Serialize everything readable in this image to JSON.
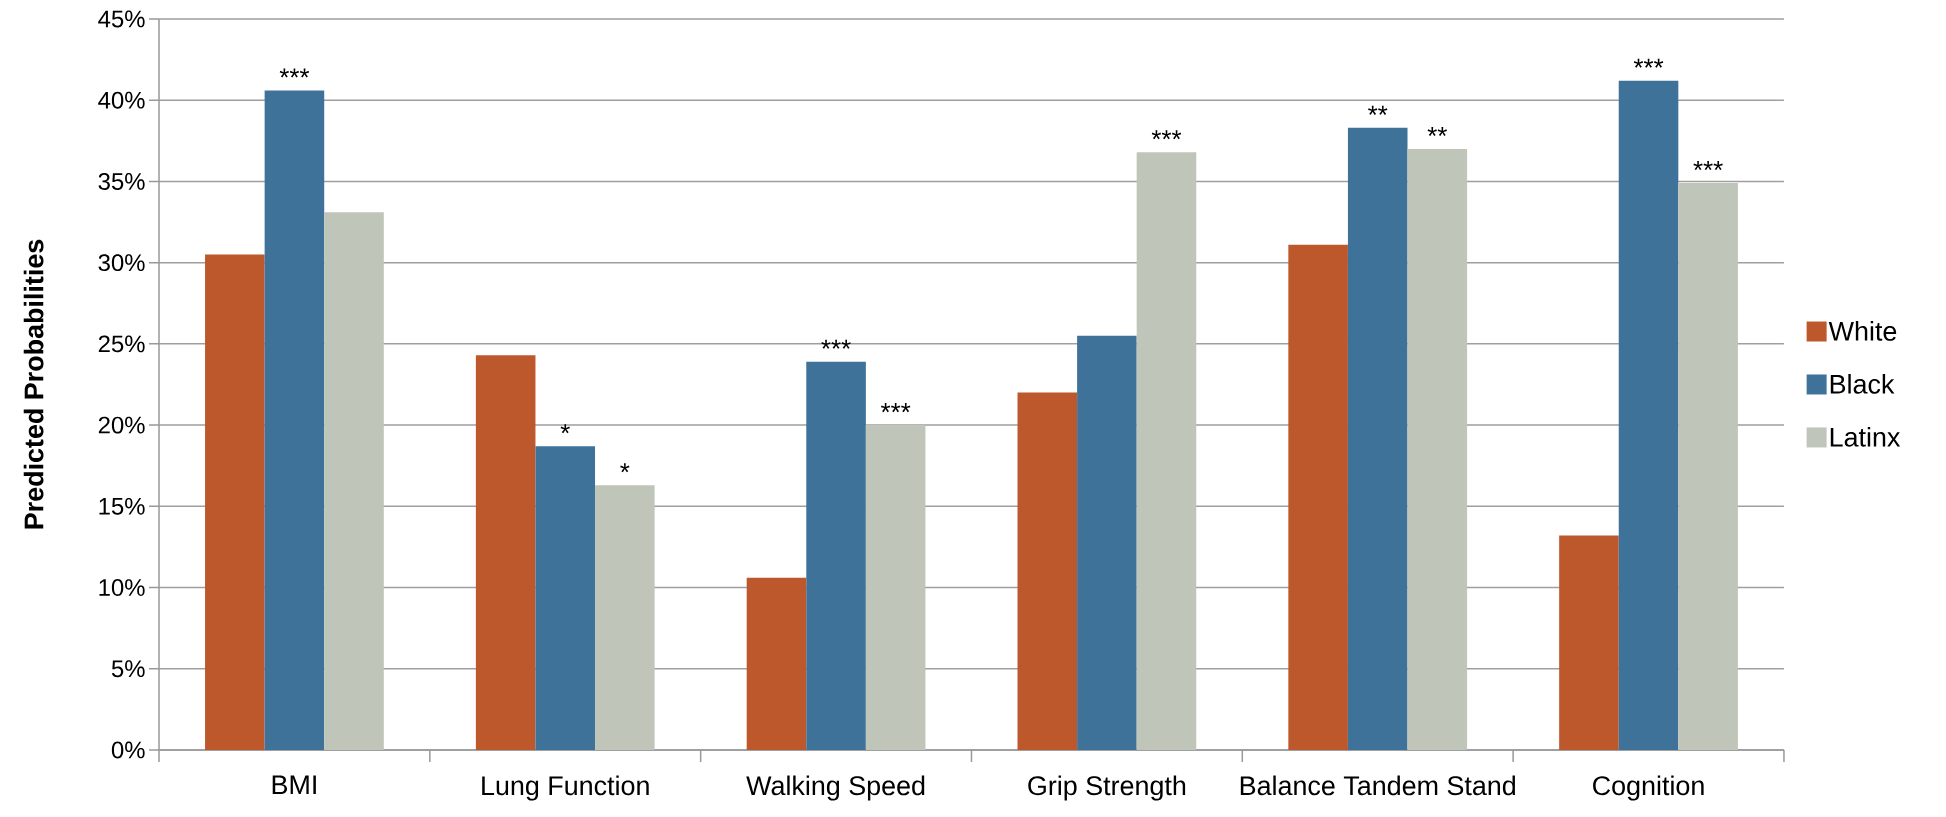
{
  "chart_data": {
    "type": "bar",
    "ylabel": "Predicted Probabilities",
    "categories": [
      "BMI",
      "Lung Function",
      "Walking Speed",
      "Grip Strength",
      "Balance Tandem Stand",
      "Cognition"
    ],
    "series": [
      {
        "name": "White",
        "color": "#bc582c",
        "values": [
          30.5,
          24.3,
          10.6,
          22.0,
          31.1,
          13.2
        ]
      },
      {
        "name": "Black",
        "color": "#3f7299",
        "values": [
          40.6,
          18.7,
          23.9,
          25.5,
          38.3,
          41.2
        ],
        "value_labels": [
          "***",
          "*",
          "***",
          null,
          "**",
          "***"
        ]
      },
      {
        "name": "Latinx",
        "color": "#bfc5b8",
        "values": [
          33.1,
          16.3,
          20.0,
          36.8,
          37.0,
          34.9
        ],
        "value_labels": [
          null,
          "*",
          "***",
          "***",
          "**",
          "***"
        ]
      }
    ],
    "ylim": [
      0,
      45
    ],
    "yticks": [
      {
        "value": 0,
        "label": "0%"
      },
      {
        "value": 5,
        "label": "5%"
      },
      {
        "value": 10,
        "label": "10%"
      },
      {
        "value": 15,
        "label": "15%"
      },
      {
        "value": 20,
        "label": "20%"
      },
      {
        "value": 25,
        "label": "25%"
      },
      {
        "value": 30,
        "label": "30%"
      },
      {
        "value": 35,
        "label": "35%"
      },
      {
        "value": 40,
        "label": "40%"
      },
      {
        "value": 45,
        "label": "45%"
      }
    ],
    "grid": "y",
    "legend": "right"
  }
}
